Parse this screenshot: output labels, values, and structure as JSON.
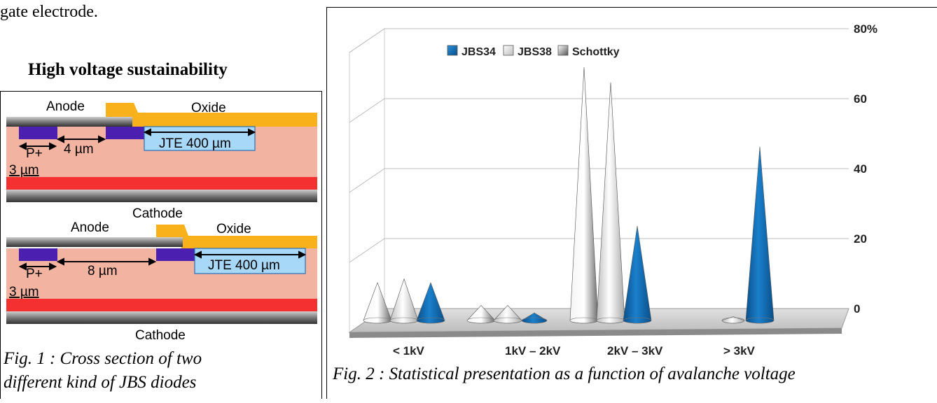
{
  "intro_text": "gate electrode.",
  "section_heading": "High voltage sustainability",
  "fig1": {
    "diagram1": {
      "anode": "Anode",
      "oxide": "Oxide",
      "spacing": "4 µm",
      "jte": "JTE 400 µm",
      "p_plus": "P+",
      "p_width": "3 µm"
    },
    "diagram2": {
      "cathode_top": "Cathode",
      "anode": "Anode",
      "oxide": "Oxide",
      "spacing": "8 µm",
      "jte": "JTE 400 µm",
      "p_plus": "P+",
      "p_width": "3 µm",
      "cathode_bottom": "Cathode"
    },
    "caption_line1": "Fig. 1 : Cross section of two",
    "caption_line2": "different kind of JBS diodes"
  },
  "fig2": {
    "caption": "Fig. 2 : Statistical presentation as a function of avalanche voltage"
  },
  "colors": {
    "substrate": "#f2b3a0",
    "oxide": "#f8b11a",
    "metal": "#888888",
    "p_implant": "#4b1fb0",
    "jte": "#a8d8f8",
    "n_plus": "#f43030",
    "jbs34": "#0e6db5",
    "jbs38": "#e6e6e6",
    "schottky": "#b8b8b8"
  },
  "chart_data": {
    "type": "bar",
    "categories": [
      "< 1kV",
      "1kV – 2kV",
      "2kV – 3kV",
      "> 3kV"
    ],
    "series": [
      {
        "name": "Schottky",
        "values": [
          10,
          4,
          67,
          0
        ]
      },
      {
        "name": "JBS38",
        "values": [
          11,
          4,
          63,
          1
        ]
      },
      {
        "name": "JBS34",
        "values": [
          10,
          2,
          25,
          46
        ]
      }
    ],
    "y_tick_labels": [
      "0",
      "20",
      "40",
      "60",
      "80%"
    ],
    "ylim": [
      0,
      80
    ],
    "grid": true,
    "legend_position": "top-left",
    "style": "3d cones"
  }
}
